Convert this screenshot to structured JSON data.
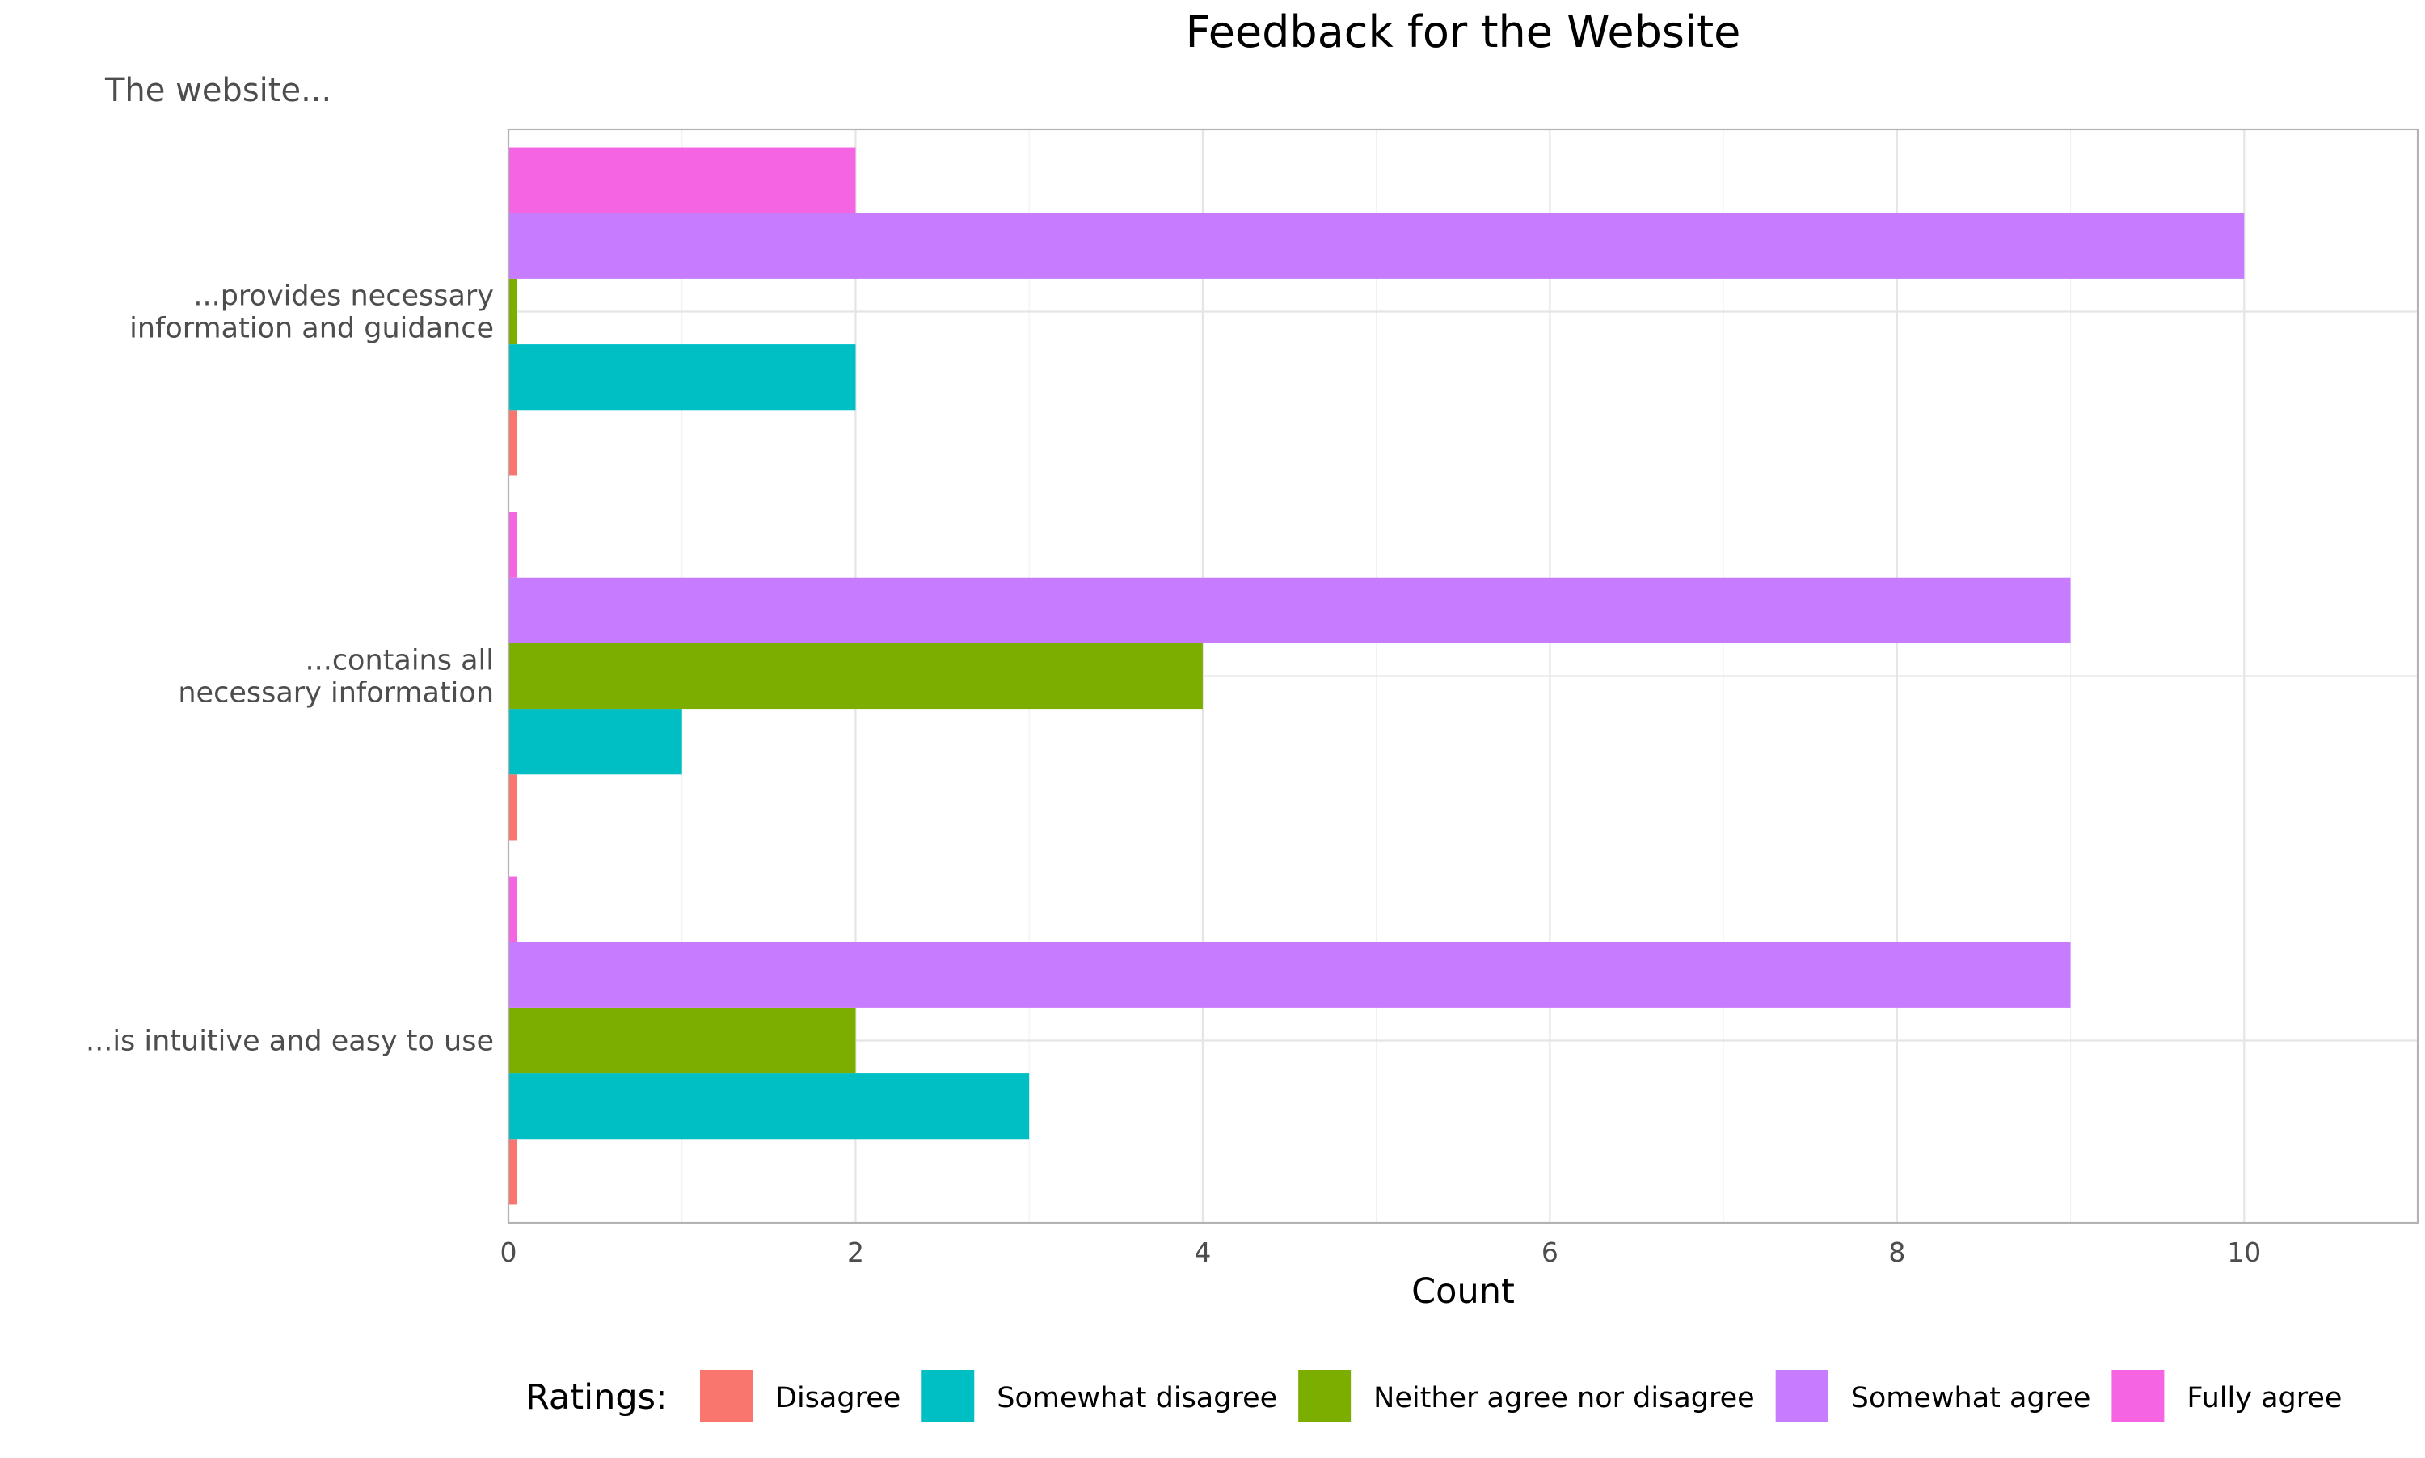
{
  "chart_data": {
    "type": "bar",
    "orientation": "horizontal",
    "title": "Feedback for the Website",
    "subtitle": "The website...",
    "xlabel": "Count",
    "xlim": [
      0,
      11
    ],
    "xticks": [
      0,
      2,
      4,
      6,
      8,
      10
    ],
    "categories": [
      "...provides necessary\ninformation and guidance",
      "...contains all\nnecessary information",
      "...is intuitive and easy to use"
    ],
    "series": [
      {
        "name": "Disagree",
        "color": "#F8766D",
        "values": [
          0.05,
          0.05,
          0.05
        ]
      },
      {
        "name": "Somewhat disagree",
        "color": "#00BFC4",
        "values": [
          2,
          1,
          3
        ]
      },
      {
        "name": "Neither agree nor disagree",
        "color": "#7CAE00",
        "values": [
          0.05,
          4,
          2
        ]
      },
      {
        "name": "Somewhat agree",
        "color": "#C77CFF",
        "values": [
          10,
          9,
          9
        ]
      },
      {
        "name": "Fully agree",
        "color": "#F564E3",
        "values": [
          2,
          0.05,
          0.05
        ]
      }
    ],
    "legend": {
      "title": "Ratings:",
      "position": "bottom"
    },
    "grid": true
  }
}
